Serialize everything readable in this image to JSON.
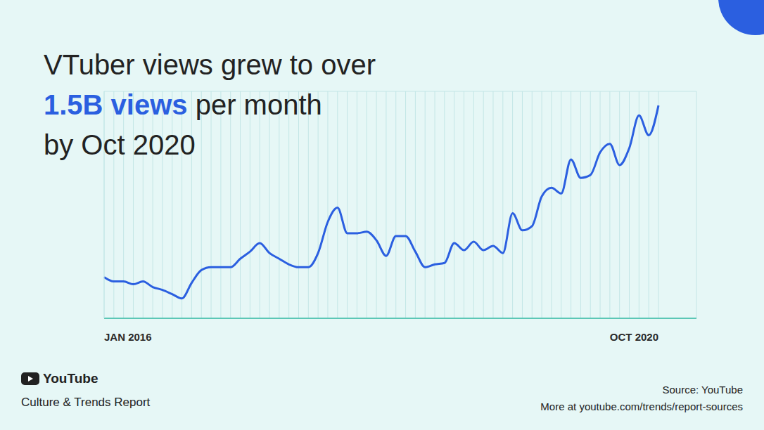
{
  "chart_data": {
    "type": "line",
    "title": [
      "VTuber views grew to over",
      "1.5B views per month",
      "by Oct 2020"
    ],
    "highlight": "1.5B views",
    "categories": [
      "JAN 2016",
      null,
      null,
      null,
      null,
      null,
      null,
      null,
      null,
      null,
      null,
      null,
      null,
      null,
      null,
      null,
      null,
      null,
      null,
      null,
      null,
      null,
      null,
      null,
      null,
      null,
      null,
      null,
      null,
      null,
      null,
      null,
      null,
      null,
      null,
      null,
      null,
      null,
      null,
      null,
      null,
      null,
      null,
      null,
      null,
      null,
      null,
      null,
      null,
      null,
      null,
      null,
      null,
      null,
      null,
      null,
      null,
      "OCT 2020"
    ],
    "values": [
      0.29,
      0.26,
      0.26,
      0.24,
      0.26,
      0.22,
      0.2,
      0.17,
      0.14,
      0.25,
      0.34,
      0.36,
      0.36,
      0.36,
      0.42,
      0.47,
      0.53,
      0.46,
      0.42,
      0.38,
      0.36,
      0.36,
      0.46,
      0.68,
      0.78,
      0.6,
      0.6,
      0.61,
      0.55,
      0.44,
      0.58,
      0.58,
      0.47,
      0.36,
      0.38,
      0.39,
      0.53,
      0.48,
      0.54,
      0.48,
      0.51,
      0.46,
      0.74,
      0.62,
      0.65,
      0.86,
      0.92,
      0.88,
      1.12,
      0.99,
      1.01,
      1.17,
      1.23,
      1.08,
      1.2,
      1.43,
      1.29,
      1.5
    ],
    "color": "#2b5fe0",
    "ylim": [
      0,
      1.6
    ],
    "yticks": [
      0,
      0.1,
      0.2,
      0.3,
      0.4,
      0.5,
      0.6,
      0.7,
      0.8,
      0.9,
      1,
      1.1,
      1.2,
      1.3,
      1.4,
      1.5,
      1.6
    ],
    "grid": true,
    "tick_labels": "x",
    "source": "Source: YouTube",
    "note": "More at youtube.com/trends/report-sources"
  },
  "footer": {
    "brand": "YouTube",
    "report": "Culture & Trends Report"
  }
}
